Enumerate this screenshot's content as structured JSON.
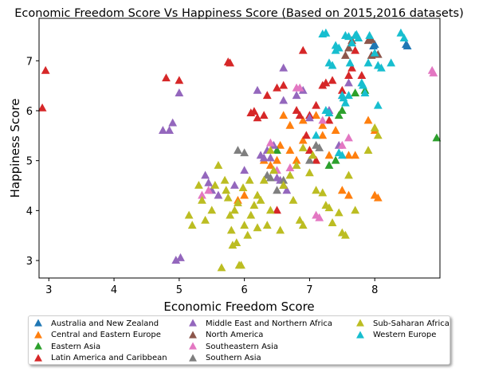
{
  "chart_data": {
    "type": "scatter",
    "title": "Economic Freedom Score Vs Happiness Score (Based on 2015,2016 datasets)",
    "xlabel": "Economic Freedom Score",
    "ylabel": "Happiness Score",
    "xlim": [
      2.85,
      9.0
    ],
    "ylim": [
      2.65,
      7.85
    ],
    "xticks": [
      3,
      4,
      5,
      6,
      7,
      8
    ],
    "yticks": [
      3,
      4,
      5,
      6,
      7
    ],
    "grid": false,
    "legend_position": "bottom",
    "marker": "triangle",
    "series": [
      {
        "name": "Australia and New Zealand",
        "color": "#1f77b4",
        "points": [
          [
            8.48,
            7.32
          ],
          [
            8.5,
            7.29
          ],
          [
            8.0,
            7.32
          ],
          [
            7.98,
            7.29
          ]
        ]
      },
      {
        "name": "Central and Eastern Europe",
        "color": "#ff7f0e",
        "points": [
          [
            6.6,
            5.9
          ],
          [
            6.7,
            5.7
          ],
          [
            6.9,
            5.8
          ],
          [
            7.1,
            5.9
          ],
          [
            7.2,
            5.5
          ],
          [
            7.3,
            5.1
          ],
          [
            7.6,
            5.1
          ],
          [
            7.7,
            5.1
          ],
          [
            7.9,
            5.8
          ],
          [
            8.0,
            5.6
          ],
          [
            7.5,
            4.4
          ],
          [
            7.6,
            4.3
          ],
          [
            8.0,
            4.3
          ],
          [
            8.05,
            4.25
          ],
          [
            6.5,
            5.0
          ],
          [
            6.7,
            5.2
          ],
          [
            6.9,
            5.4
          ],
          [
            7.2,
            5.7
          ],
          [
            7.4,
            5.6
          ],
          [
            7.0,
            5.2
          ],
          [
            6.3,
            5.0
          ],
          [
            6.4,
            4.9
          ],
          [
            6.0,
            4.3
          ],
          [
            5.9,
            4.2
          ],
          [
            6.6,
            4.5
          ],
          [
            6.8,
            5.0
          ],
          [
            6.55,
            5.3
          ]
        ]
      },
      {
        "name": "Eastern Asia",
        "color": "#2ca02c",
        "points": [
          [
            7.45,
            5.9
          ],
          [
            7.5,
            6.0
          ],
          [
            7.7,
            6.35
          ],
          [
            7.85,
            6.4
          ],
          [
            8.95,
            5.45
          ],
          [
            6.5,
            5.2
          ],
          [
            7.3,
            4.9
          ],
          [
            7.4,
            5.0
          ]
        ]
      },
      {
        "name": "Latin America and Caribbean",
        "color": "#d62728",
        "points": [
          [
            2.9,
            6.05
          ],
          [
            2.95,
            6.8
          ],
          [
            4.8,
            6.65
          ],
          [
            5.0,
            6.6
          ],
          [
            5.75,
            6.97
          ],
          [
            5.78,
            6.95
          ],
          [
            6.1,
            5.95
          ],
          [
            6.15,
            5.98
          ],
          [
            6.2,
            5.85
          ],
          [
            6.5,
            6.45
          ],
          [
            6.6,
            6.5
          ],
          [
            6.8,
            6.0
          ],
          [
            6.9,
            7.2
          ],
          [
            6.95,
            5.5
          ],
          [
            7.0,
            5.2
          ],
          [
            7.1,
            6.1
          ],
          [
            7.2,
            6.5
          ],
          [
            7.25,
            6.55
          ],
          [
            7.3,
            5.8
          ],
          [
            7.35,
            6.6
          ],
          [
            7.5,
            6.4
          ],
          [
            7.6,
            6.7
          ],
          [
            7.65,
            6.85
          ],
          [
            7.7,
            7.2
          ],
          [
            7.8,
            6.7
          ],
          [
            6.5,
            4.0
          ],
          [
            6.3,
            5.9
          ],
          [
            6.35,
            6.3
          ],
          [
            7.1,
            5.0
          ],
          [
            7.0,
            5.9
          ],
          [
            6.85,
            5.9
          ]
        ]
      },
      {
        "name": "Middle East and Northern Africa",
        "color": "#9467bd",
        "points": [
          [
            4.75,
            5.6
          ],
          [
            4.85,
            5.6
          ],
          [
            4.9,
            5.75
          ],
          [
            5.0,
            6.35
          ],
          [
            4.95,
            3.0
          ],
          [
            5.02,
            3.05
          ],
          [
            5.4,
            4.7
          ],
          [
            5.45,
            4.55
          ],
          [
            5.5,
            4.4
          ],
          [
            5.6,
            4.3
          ],
          [
            6.0,
            4.8
          ],
          [
            6.25,
            5.1
          ],
          [
            6.3,
            5.05
          ],
          [
            6.35,
            5.2
          ],
          [
            6.4,
            5.05
          ],
          [
            6.45,
            5.3
          ],
          [
            6.5,
            4.65
          ],
          [
            6.55,
            4.6
          ],
          [
            6.2,
            6.4
          ],
          [
            6.6,
            6.85
          ],
          [
            6.8,
            6.3
          ],
          [
            6.9,
            6.4
          ],
          [
            7.0,
            5.85
          ],
          [
            7.3,
            6.0
          ],
          [
            7.45,
            5.3
          ],
          [
            7.5,
            6.3
          ],
          [
            7.6,
            6.55
          ],
          [
            5.85,
            4.5
          ],
          [
            6.65,
            4.4
          ],
          [
            6.6,
            6.2
          ]
        ]
      },
      {
        "name": "North America",
        "color": "#8c564b",
        "points": [
          [
            7.55,
            7.1
          ],
          [
            7.6,
            7.25
          ],
          [
            7.65,
            7.4
          ],
          [
            7.9,
            7.4
          ],
          [
            7.95,
            7.1
          ],
          [
            8.05,
            7.12
          ],
          [
            7.95,
            7.42
          ]
        ]
      },
      {
        "name": "Southeastern Asia",
        "color": "#e377c2",
        "points": [
          [
            5.35,
            4.3
          ],
          [
            5.45,
            4.4
          ],
          [
            6.4,
            5.35
          ],
          [
            6.5,
            4.8
          ],
          [
            6.8,
            6.45
          ],
          [
            6.85,
            6.45
          ],
          [
            7.1,
            3.9
          ],
          [
            7.15,
            3.85
          ],
          [
            7.5,
            5.3
          ],
          [
            7.6,
            5.45
          ],
          [
            8.88,
            6.8
          ],
          [
            8.9,
            6.75
          ],
          [
            7.2,
            5.8
          ],
          [
            6.7,
            4.85
          ]
        ]
      },
      {
        "name": "Southern Asia",
        "color": "#7f7f7f",
        "points": [
          [
            5.9,
            5.2
          ],
          [
            6.0,
            5.15
          ],
          [
            6.35,
            4.7
          ],
          [
            6.4,
            4.65
          ],
          [
            6.5,
            4.4
          ],
          [
            6.6,
            4.5
          ],
          [
            7.0,
            5.0
          ],
          [
            7.1,
            5.3
          ],
          [
            7.15,
            5.25
          ],
          [
            6.6,
            4.6
          ]
        ]
      },
      {
        "name": "Sub-Saharan Africa",
        "color": "#bcbd22",
        "points": [
          [
            5.15,
            3.9
          ],
          [
            5.2,
            3.7
          ],
          [
            5.3,
            4.5
          ],
          [
            5.35,
            4.2
          ],
          [
            5.4,
            3.8
          ],
          [
            5.5,
            4.0
          ],
          [
            5.55,
            4.5
          ],
          [
            5.6,
            4.9
          ],
          [
            5.7,
            4.6
          ],
          [
            5.72,
            4.4
          ],
          [
            5.75,
            4.25
          ],
          [
            5.78,
            3.9
          ],
          [
            5.8,
            3.6
          ],
          [
            5.82,
            3.3
          ],
          [
            5.85,
            4.0
          ],
          [
            5.88,
            3.35
          ],
          [
            5.9,
            4.15
          ],
          [
            5.92,
            2.9
          ],
          [
            5.95,
            2.9
          ],
          [
            5.98,
            4.45
          ],
          [
            6.0,
            3.7
          ],
          [
            6.05,
            3.5
          ],
          [
            6.08,
            4.6
          ],
          [
            6.1,
            3.9
          ],
          [
            6.15,
            4.1
          ],
          [
            6.2,
            3.65
          ],
          [
            6.25,
            4.2
          ],
          [
            6.3,
            4.6
          ],
          [
            6.35,
            3.7
          ],
          [
            6.4,
            4.0
          ],
          [
            6.45,
            4.8
          ],
          [
            6.55,
            3.6
          ],
          [
            6.6,
            4.5
          ],
          [
            6.7,
            4.7
          ],
          [
            6.75,
            4.2
          ],
          [
            6.85,
            3.8
          ],
          [
            6.9,
            3.7
          ],
          [
            7.0,
            4.75
          ],
          [
            7.1,
            4.4
          ],
          [
            7.2,
            4.35
          ],
          [
            7.3,
            4.05
          ],
          [
            7.35,
            3.75
          ],
          [
            7.45,
            3.95
          ],
          [
            7.5,
            3.55
          ],
          [
            7.55,
            3.5
          ],
          [
            7.6,
            4.7
          ],
          [
            7.7,
            4.0
          ],
          [
            7.9,
            5.2
          ],
          [
            8.0,
            5.65
          ],
          [
            8.05,
            5.5
          ],
          [
            6.2,
            4.3
          ],
          [
            6.4,
            5.2
          ],
          [
            6.8,
            4.9
          ],
          [
            7.25,
            4.1
          ],
          [
            5.65,
            2.85
          ],
          [
            6.9,
            5.25
          ],
          [
            7.05,
            5.1
          ]
        ]
      },
      {
        "name": "Western Europe",
        "color": "#17becf",
        "points": [
          [
            7.2,
            7.53
          ],
          [
            7.25,
            7.55
          ],
          [
            7.3,
            6.95
          ],
          [
            7.35,
            6.9
          ],
          [
            7.4,
            7.3
          ],
          [
            7.45,
            7.25
          ],
          [
            7.5,
            6.3
          ],
          [
            7.52,
            6.25
          ],
          [
            7.55,
            7.5
          ],
          [
            7.6,
            7.48
          ],
          [
            7.62,
            6.95
          ],
          [
            7.65,
            7.35
          ],
          [
            7.7,
            7.5
          ],
          [
            7.72,
            7.52
          ],
          [
            7.75,
            7.45
          ],
          [
            7.8,
            6.55
          ],
          [
            7.82,
            6.5
          ],
          [
            7.85,
            6.35
          ],
          [
            7.9,
            6.95
          ],
          [
            7.92,
            7.5
          ],
          [
            8.0,
            7.15
          ],
          [
            8.05,
            6.9
          ],
          [
            8.1,
            6.85
          ],
          [
            8.25,
            6.95
          ],
          [
            8.4,
            7.55
          ],
          [
            8.45,
            7.45
          ],
          [
            7.45,
            5.15
          ],
          [
            7.5,
            5.1
          ],
          [
            7.55,
            6.15
          ],
          [
            7.6,
            6.3
          ],
          [
            7.25,
            6.0
          ],
          [
            7.3,
            5.95
          ],
          [
            8.05,
            6.1
          ],
          [
            7.4,
            7.2
          ],
          [
            7.1,
            5.5
          ]
        ]
      }
    ]
  }
}
